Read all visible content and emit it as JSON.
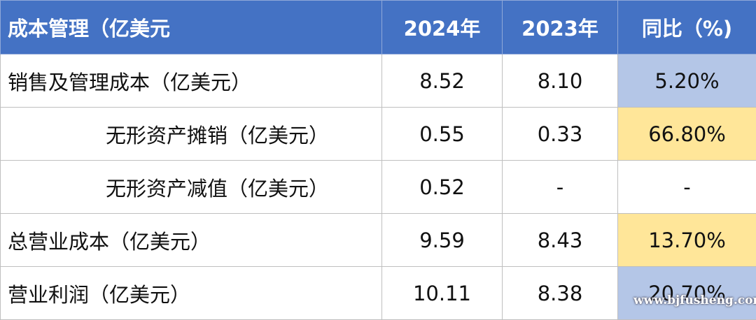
{
  "table": {
    "header": [
      "成本管理（亿美元",
      "2024年",
      "2023年",
      "同比（%)"
    ],
    "rows": [
      [
        "销售及管理成本（亿美元）",
        "8.52",
        "8.10",
        "5.20%"
      ],
      [
        "无形资产摊销（亿美元）",
        "0.55",
        "0.33",
        "66.80%"
      ],
      [
        "无形资产减值（亿美元）",
        "0.52",
        "-",
        "-"
      ],
      [
        "总营业成本（亿美元）",
        "9.59",
        "8.43",
        "13.70%"
      ],
      [
        "营业利润（亿美元）",
        "10.11",
        "8.38",
        "20.70%"
      ]
    ]
  },
  "watermark": "www.bjfusheng.com"
}
